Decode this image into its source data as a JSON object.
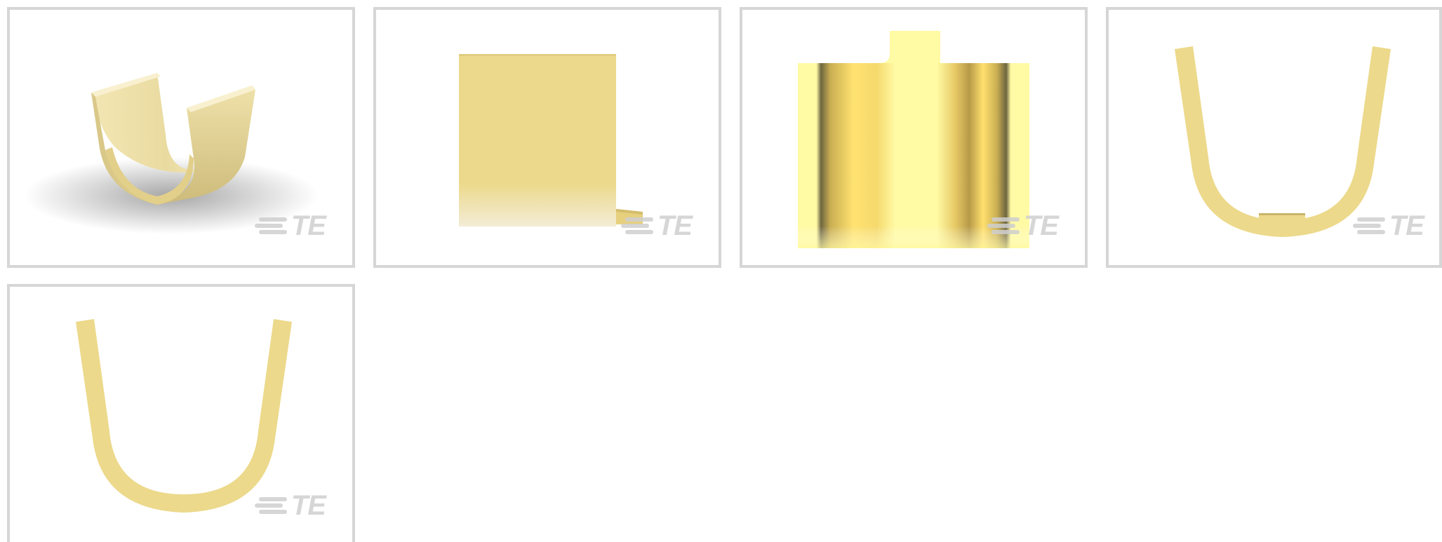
{
  "gallery": {
    "thumbnails": [
      {
        "view": "isometric",
        "watermark": "TE"
      },
      {
        "view": "side",
        "watermark": "TE"
      },
      {
        "view": "top",
        "watermark": "TE"
      },
      {
        "view": "front",
        "watermark": "TE"
      },
      {
        "view": "back",
        "watermark": "TE"
      }
    ]
  },
  "colors": {
    "border": "#d6d6d6",
    "part_main": "#ecd98b",
    "part_light": "#fffaa4",
    "part_shadow": "#b9a257",
    "watermark": "#cfcfcf"
  },
  "icons": {
    "watermark_logo": "te-connectivity-logo-icon"
  }
}
